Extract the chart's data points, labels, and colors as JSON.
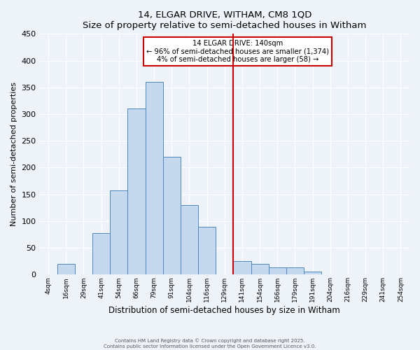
{
  "title": "14, ELGAR DRIVE, WITHAM, CM8 1QD",
  "subtitle": "Size of property relative to semi-detached houses in Witham",
  "xlabel": "Distribution of semi-detached houses by size in Witham",
  "ylabel": "Number of semi-detached properties",
  "bin_labels": [
    "4sqm",
    "16sqm",
    "29sqm",
    "41sqm",
    "54sqm",
    "66sqm",
    "79sqm",
    "91sqm",
    "104sqm",
    "116sqm",
    "129sqm",
    "141sqm",
    "154sqm",
    "166sqm",
    "179sqm",
    "191sqm",
    "204sqm",
    "216sqm",
    "229sqm",
    "241sqm",
    "254sqm"
  ],
  "counts": [
    0,
    20,
    0,
    77,
    158,
    311,
    360,
    220,
    130,
    89,
    0,
    25,
    20,
    13,
    13,
    6,
    0,
    0,
    0,
    0,
    0
  ],
  "n_bins": 21,
  "property_bin_idx": 11,
  "bar_facecolor": "#c5d9ee",
  "bar_edgecolor": "#4f86c0",
  "vline_color": "#cc0000",
  "annotation_box_edgecolor": "#cc0000",
  "annotation_box_facecolor": "#ffffff",
  "annotation_line1": "14 ELGAR DRIVE: 140sqm",
  "annotation_line2": "← 96% of semi-detached houses are smaller (1,374)",
  "annotation_line3": "4% of semi-detached houses are larger (58) →",
  "ylim": [
    0,
    450
  ],
  "yticks": [
    0,
    50,
    100,
    150,
    200,
    250,
    300,
    350,
    400,
    450
  ],
  "background_color": "#eef2f9",
  "grid_color": "#ffffff",
  "footer_line1": "Contains HM Land Registry data © Crown copyright and database right 2025.",
  "footer_line2": "Contains public sector information licensed under the Open Government Licence v3.0."
}
